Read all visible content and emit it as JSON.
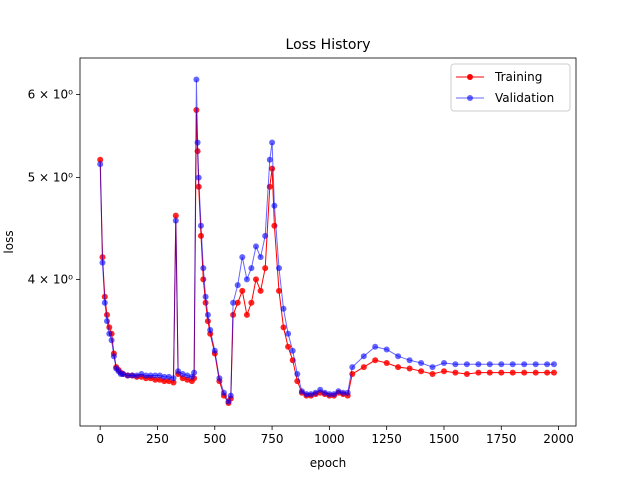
{
  "chart_data": {
    "type": "line",
    "title": "Loss History",
    "xlabel": "epoch",
    "ylabel": "loss",
    "xlim": [
      -88,
      2076
    ],
    "ylim": [
      2.9,
      6.5
    ],
    "yscale": "log",
    "grid": false,
    "legend_placement": "top-right",
    "x_ticks": [
      0,
      250,
      500,
      750,
      1000,
      1250,
      1500,
      1750,
      2000
    ],
    "x_tick_labels": [
      "0",
      "250",
      "500",
      "750",
      "1000",
      "1250",
      "1500",
      "1750",
      "2000"
    ],
    "y_ticks": [
      4,
      5,
      6
    ],
    "y_tick_labels": [
      "4 × 10⁰",
      "5 × 10⁰",
      "6 × 10⁰"
    ],
    "series": [
      {
        "name": "Training",
        "color": "#ff0000",
        "marker": "circle",
        "x": [
          0,
          10,
          20,
          30,
          40,
          50,
          60,
          70,
          80,
          90,
          100,
          120,
          140,
          160,
          180,
          200,
          220,
          240,
          260,
          280,
          300,
          320,
          330,
          340,
          360,
          380,
          400,
          410,
          420,
          425,
          430,
          440,
          450,
          460,
          470,
          480,
          500,
          520,
          540,
          560,
          570,
          580,
          600,
          620,
          640,
          660,
          680,
          700,
          720,
          740,
          750,
          760,
          780,
          800,
          820,
          840,
          860,
          880,
          900,
          920,
          940,
          960,
          980,
          1000,
          1020,
          1040,
          1060,
          1080,
          1100,
          1150,
          1200,
          1250,
          1300,
          1350,
          1400,
          1450,
          1500,
          1550,
          1600,
          1650,
          1700,
          1750,
          1800,
          1850,
          1900,
          1950,
          1980
        ],
        "y": [
          5.2,
          4.2,
          3.85,
          3.7,
          3.6,
          3.55,
          3.4,
          3.3,
          3.28,
          3.26,
          3.25,
          3.24,
          3.24,
          3.23,
          3.23,
          3.22,
          3.22,
          3.21,
          3.21,
          3.2,
          3.2,
          3.19,
          4.6,
          3.25,
          3.22,
          3.21,
          3.2,
          3.22,
          5.8,
          5.3,
          4.9,
          4.4,
          4.0,
          3.8,
          3.65,
          3.55,
          3.4,
          3.2,
          3.1,
          3.05,
          3.08,
          3.7,
          3.8,
          3.9,
          3.7,
          3.8,
          4.0,
          3.9,
          4.1,
          4.9,
          5.1,
          4.5,
          3.9,
          3.6,
          3.45,
          3.35,
          3.2,
          3.12,
          3.1,
          3.1,
          3.11,
          3.12,
          3.11,
          3.1,
          3.1,
          3.12,
          3.11,
          3.1,
          3.25,
          3.3,
          3.35,
          3.33,
          3.3,
          3.29,
          3.27,
          3.25,
          3.27,
          3.26,
          3.25,
          3.26,
          3.26,
          3.26,
          3.26,
          3.26,
          3.26,
          3.26,
          3.26
        ]
      },
      {
        "name": "Validation",
        "color": "#0000ff",
        "marker": "circle",
        "x": [
          0,
          10,
          20,
          30,
          40,
          50,
          60,
          70,
          80,
          90,
          100,
          120,
          140,
          160,
          180,
          200,
          220,
          240,
          260,
          280,
          300,
          320,
          330,
          340,
          360,
          380,
          400,
          410,
          420,
          425,
          430,
          440,
          450,
          460,
          470,
          480,
          500,
          520,
          540,
          560,
          570,
          580,
          600,
          620,
          640,
          660,
          680,
          700,
          720,
          740,
          750,
          760,
          780,
          800,
          820,
          840,
          860,
          880,
          900,
          920,
          940,
          960,
          980,
          1000,
          1020,
          1040,
          1060,
          1080,
          1100,
          1150,
          1200,
          1250,
          1300,
          1350,
          1400,
          1450,
          1500,
          1550,
          1600,
          1650,
          1700,
          1750,
          1800,
          1850,
          1900,
          1950,
          1980
        ],
        "y": [
          5.15,
          4.15,
          3.8,
          3.65,
          3.55,
          3.5,
          3.38,
          3.29,
          3.27,
          3.25,
          3.25,
          3.24,
          3.24,
          3.24,
          3.25,
          3.24,
          3.24,
          3.24,
          3.24,
          3.23,
          3.23,
          3.22,
          4.55,
          3.27,
          3.25,
          3.24,
          3.23,
          3.26,
          6.2,
          5.4,
          5.0,
          4.5,
          4.1,
          3.85,
          3.7,
          3.58,
          3.42,
          3.22,
          3.12,
          3.06,
          3.1,
          3.8,
          3.95,
          4.2,
          4.0,
          4.1,
          4.3,
          4.2,
          4.4,
          5.2,
          5.4,
          4.7,
          4.1,
          3.75,
          3.55,
          3.42,
          3.25,
          3.13,
          3.11,
          3.11,
          3.12,
          3.14,
          3.12,
          3.11,
          3.11,
          3.13,
          3.12,
          3.12,
          3.3,
          3.38,
          3.45,
          3.43,
          3.38,
          3.35,
          3.33,
          3.3,
          3.33,
          3.32,
          3.32,
          3.32,
          3.32,
          3.32,
          3.32,
          3.32,
          3.32,
          3.32,
          3.32
        ]
      }
    ]
  }
}
